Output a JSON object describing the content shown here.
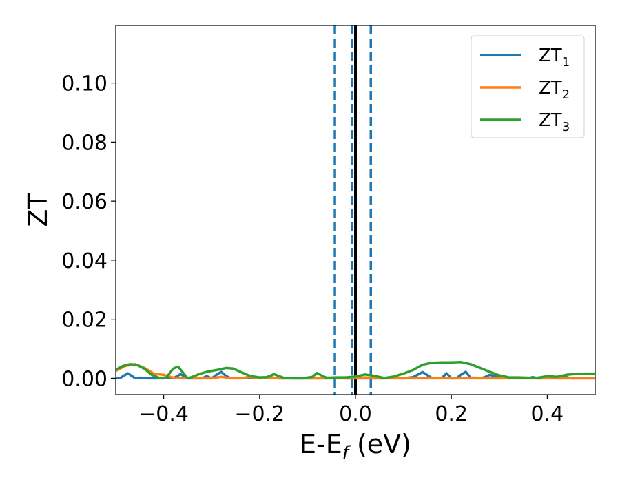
{
  "chart_data": {
    "type": "line",
    "title": "",
    "xlabel": {
      "main": "E-E",
      "sub": "f",
      "unit": " (eV)"
    },
    "ylabel": "ZT",
    "xlim": [
      -0.5,
      0.5
    ],
    "ylim": [
      -0.0055,
      0.1195
    ],
    "x_ticks": [
      -0.4,
      -0.2,
      0.0,
      0.2,
      0.4
    ],
    "x_tick_labels": [
      "−0.4",
      "−0.2",
      "0.0",
      "0.2",
      "0.4"
    ],
    "y_ticks": [
      0.0,
      0.02,
      0.04,
      0.06,
      0.08,
      0.1
    ],
    "y_tick_labels": [
      "0.00",
      "0.02",
      "0.04",
      "0.06",
      "0.08",
      "0.10"
    ],
    "grid": false,
    "legend_position": "top-right",
    "reference_lines": [
      {
        "x": -0.043,
        "style": "dashed",
        "color": "#1f77b4"
      },
      {
        "x": -0.007,
        "style": "dashed",
        "color": "#1f77b4"
      },
      {
        "x": 0.032,
        "style": "dashed",
        "color": "#1f77b4"
      },
      {
        "x": 0.0,
        "style": "solid",
        "color": "#000000"
      }
    ],
    "series": [
      {
        "name": "ZT",
        "sub": "1",
        "color": "#1f77b4",
        "x": [
          -0.5,
          -0.49,
          -0.475,
          -0.46,
          -0.45,
          -0.435,
          -0.42,
          -0.4,
          -0.39,
          -0.38,
          -0.365,
          -0.35,
          -0.34,
          -0.33,
          -0.32,
          -0.31,
          -0.3,
          -0.29,
          -0.28,
          -0.27,
          -0.26,
          -0.25,
          -0.24,
          -0.22,
          -0.2,
          -0.18,
          -0.17,
          -0.16,
          -0.15,
          -0.13,
          -0.1,
          -0.08,
          -0.06,
          -0.04,
          -0.02,
          0.0,
          0.02,
          0.04,
          0.06,
          0.08,
          0.1,
          0.12,
          0.14,
          0.16,
          0.18,
          0.19,
          0.2,
          0.21,
          0.22,
          0.23,
          0.24,
          0.25,
          0.26,
          0.27,
          0.28,
          0.29,
          0.3,
          0.31,
          0.32,
          0.33,
          0.34,
          0.35,
          0.36,
          0.37,
          0.38,
          0.39,
          0.4,
          0.41,
          0.42,
          0.43,
          0.44,
          0.45,
          0.46,
          0.47,
          0.48,
          0.5
        ],
        "y": [
          0.0,
          0.0002,
          0.0017,
          0.0001,
          0.0002,
          0.0,
          0.0,
          0.0,
          0.0001,
          0.0,
          0.0014,
          0.0,
          0.0,
          0.0,
          0.0,
          0.0007,
          0.0,
          0.0012,
          0.0022,
          0.0008,
          0.0,
          0.0002,
          0.0,
          0.0003,
          0.0,
          0.0004,
          0.0002,
          0.0,
          0.0,
          0.0,
          0.0,
          0.0,
          0.0,
          0.0002,
          0.0,
          0.0,
          0.0,
          0.0,
          0.0,
          0.0002,
          0.0,
          0.0004,
          0.0021,
          0.0,
          0.0001,
          0.0017,
          0.0,
          0.0,
          0.0012,
          0.0022,
          0.0002,
          0.0002,
          0.0,
          0.0004,
          0.0012,
          0.0008,
          0.0002,
          0.0004,
          0.0,
          0.0002,
          0.0,
          0.0002,
          0.0,
          0.0004,
          0.0,
          0.0,
          0.0004,
          0.0008,
          0.0,
          0.0,
          0.0004,
          0.0,
          0.0,
          0.0,
          0.0,
          0.0
        ]
      },
      {
        "name": "ZT",
        "sub": "2",
        "color": "#ff7f0e",
        "x": [
          -0.5,
          -0.48,
          -0.46,
          -0.44,
          -0.42,
          -0.4,
          -0.38,
          -0.36,
          -0.34,
          -0.32,
          -0.3,
          -0.28,
          -0.26,
          -0.24,
          -0.22,
          -0.2,
          -0.18,
          -0.16,
          -0.14,
          -0.12,
          -0.1,
          -0.08,
          -0.06,
          -0.04,
          -0.02,
          0.0,
          0.02,
          0.04,
          0.06,
          0.08,
          0.1,
          0.12,
          0.14,
          0.16,
          0.18,
          0.2,
          0.22,
          0.24,
          0.26,
          0.28,
          0.3,
          0.32,
          0.34,
          0.36,
          0.38,
          0.4,
          0.42,
          0.44,
          0.46,
          0.48,
          0.5
        ],
        "y": [
          0.0025,
          0.0042,
          0.0048,
          0.0035,
          0.0015,
          0.0012,
          0.0002,
          0.0,
          0.0,
          0.0,
          0.0,
          0.0005,
          0.0,
          0.0,
          0.0005,
          0.0,
          0.0003,
          0.0,
          0.0,
          0.0,
          0.0,
          0.0,
          0.0,
          0.0,
          0.0,
          0.0,
          0.0003,
          0.0,
          0.0,
          0.0,
          0.0,
          0.0,
          0.0,
          0.0,
          0.0,
          0.0,
          0.0,
          0.0,
          0.0,
          0.0,
          0.0,
          0.0,
          0.0,
          0.0,
          0.0,
          0.0,
          0.0,
          0.0,
          0.0,
          0.0,
          0.0
        ]
      },
      {
        "name": "ZT",
        "sub": "3",
        "color": "#2ca02c",
        "x": [
          -0.5,
          -0.485,
          -0.47,
          -0.455,
          -0.44,
          -0.425,
          -0.41,
          -0.395,
          -0.38,
          -0.37,
          -0.36,
          -0.35,
          -0.34,
          -0.325,
          -0.31,
          -0.29,
          -0.27,
          -0.255,
          -0.24,
          -0.22,
          -0.2,
          -0.185,
          -0.17,
          -0.16,
          -0.15,
          -0.13,
          -0.11,
          -0.09,
          -0.08,
          -0.07,
          -0.06,
          -0.04,
          -0.02,
          0.0,
          0.02,
          0.04,
          0.06,
          0.08,
          0.1,
          0.12,
          0.14,
          0.16,
          0.18,
          0.2,
          0.22,
          0.24,
          0.26,
          0.28,
          0.3,
          0.32,
          0.34,
          0.36,
          0.38,
          0.4,
          0.42,
          0.44,
          0.46,
          0.48,
          0.5
        ],
        "y": [
          0.0028,
          0.0042,
          0.0048,
          0.0045,
          0.0032,
          0.0012,
          0.0002,
          0.0002,
          0.0033,
          0.004,
          0.002,
          0.0,
          0.0005,
          0.0015,
          0.0022,
          0.0028,
          0.0035,
          0.0033,
          0.0022,
          0.0008,
          0.0003,
          0.0004,
          0.0014,
          0.0008,
          0.0002,
          0.0,
          0.0,
          0.0005,
          0.0018,
          0.0009,
          0.0002,
          0.0003,
          0.0003,
          0.0006,
          0.0013,
          0.0008,
          0.0001,
          0.0006,
          0.0016,
          0.0028,
          0.0046,
          0.0053,
          0.0054,
          0.0054,
          0.0055,
          0.0048,
          0.0035,
          0.0022,
          0.001,
          0.0003,
          0.0003,
          0.0002,
          0.0002,
          0.0007,
          0.0005,
          0.0012,
          0.0015,
          0.0016,
          0.0016
        ]
      }
    ]
  }
}
